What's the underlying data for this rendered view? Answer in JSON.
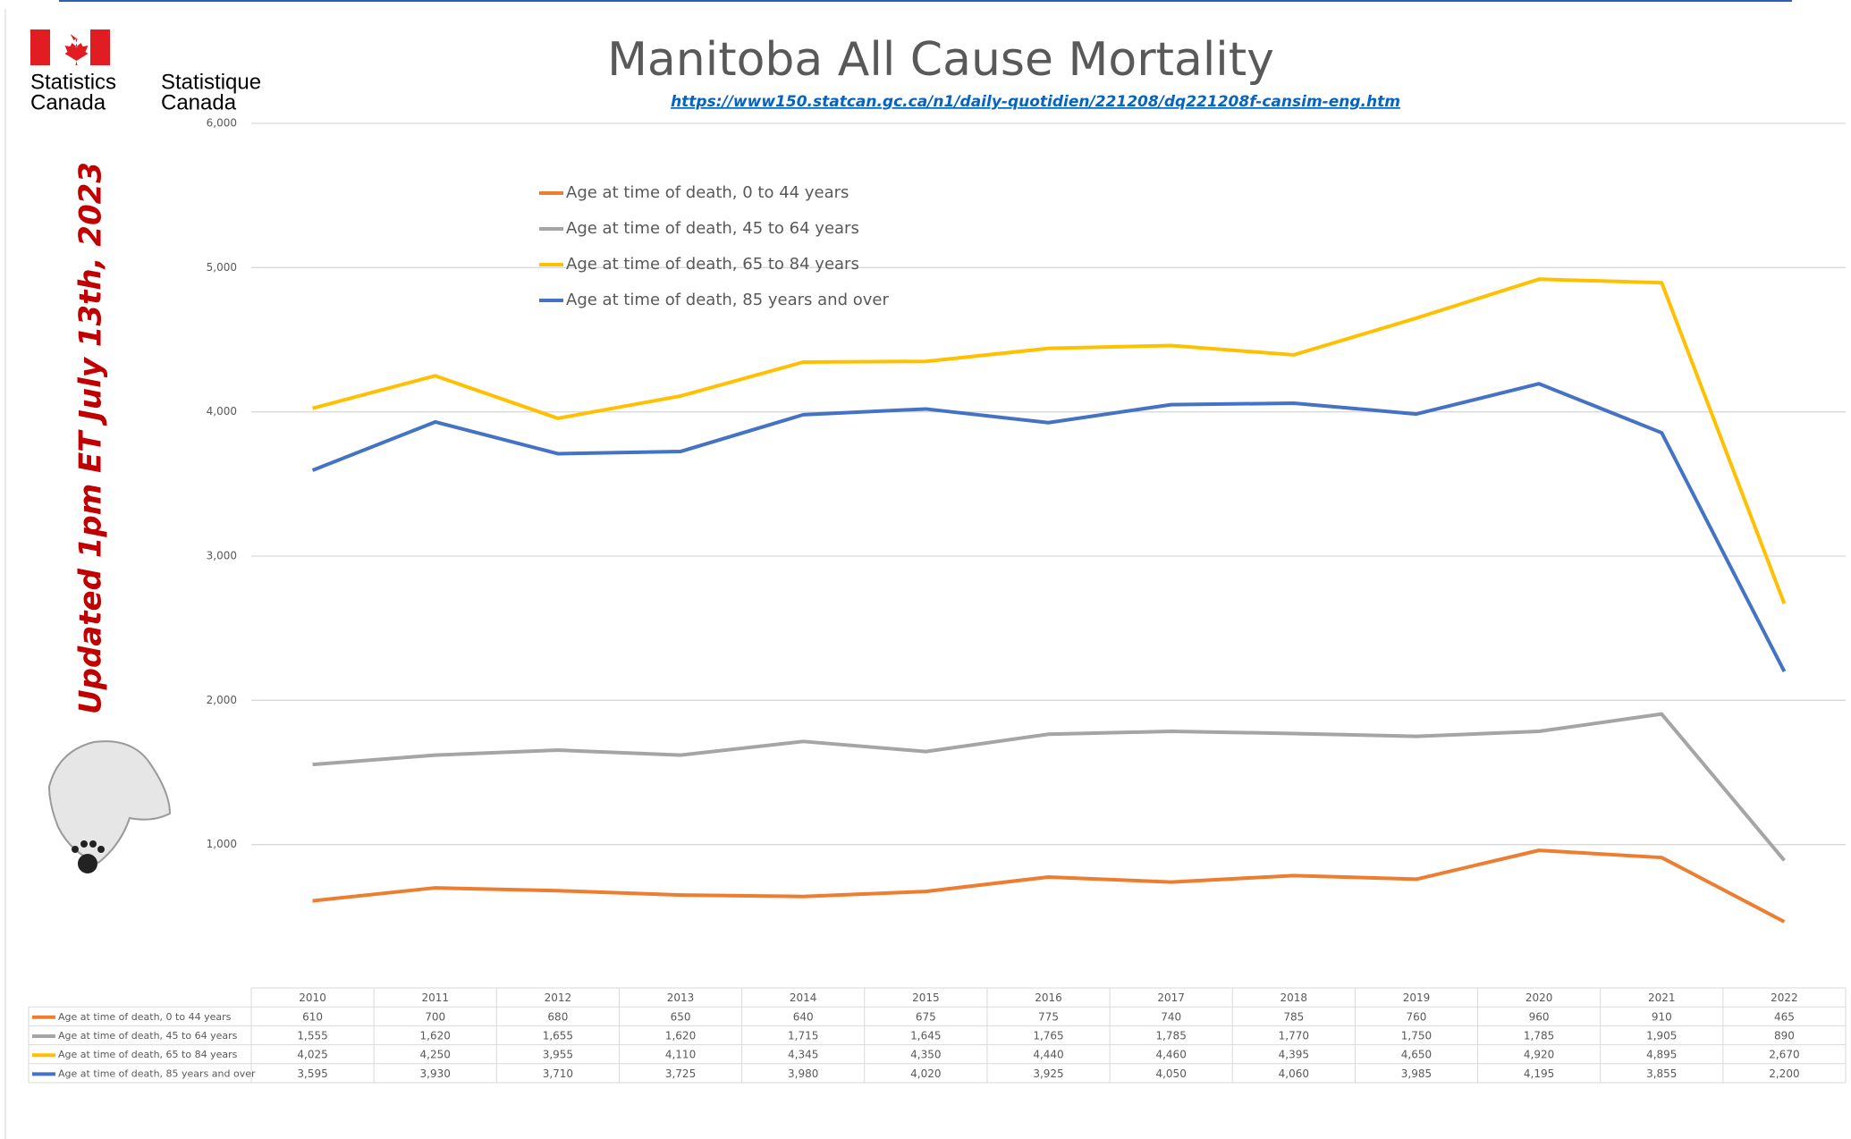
{
  "logo": {
    "english": [
      "Statistics",
      "Canada"
    ],
    "french": [
      "Statistique",
      "Canada"
    ]
  },
  "chart_data": {
    "type": "line",
    "title": "Manitoba All Cause Mortality",
    "subtitle": "https://www150.statcan.gc.ca/n1/daily-quotidien/221208/dq221208f-cansim-eng.htm",
    "annotation": "Updated 1pm ET July 13th, 2023",
    "categories": [
      "2010",
      "2011",
      "2012",
      "2013",
      "2014",
      "2015",
      "2016",
      "2017",
      "2018",
      "2019",
      "2020",
      "2021",
      "2022"
    ],
    "series": [
      {
        "name": "Age at time of death, 0 to 44 years",
        "color": "#ED7D31",
        "values": [
          610,
          700,
          680,
          650,
          640,
          675,
          775,
          740,
          785,
          760,
          960,
          910,
          465
        ],
        "value_labels": [
          "610",
          "700",
          "680",
          "650",
          "640",
          "675",
          "775",
          "740",
          "785",
          "760",
          "960",
          "910",
          "465"
        ]
      },
      {
        "name": "Age at time of death, 45 to 64 years",
        "color": "#A5A5A5",
        "values": [
          1555,
          1620,
          1655,
          1620,
          1715,
          1645,
          1765,
          1785,
          1770,
          1750,
          1785,
          1905,
          890
        ],
        "value_labels": [
          "1,555",
          "1,620",
          "1,655",
          "1,620",
          "1,715",
          "1,645",
          "1,765",
          "1,785",
          "1,770",
          "1,750",
          "1,785",
          "1,905",
          "890"
        ]
      },
      {
        "name": "Age at time of death, 65 to 84 years",
        "color": "#FFC000",
        "values": [
          4025,
          4250,
          3955,
          4110,
          4345,
          4350,
          4440,
          4460,
          4395,
          4650,
          4920,
          4895,
          2670
        ],
        "value_labels": [
          "4,025",
          "4,250",
          "3,955",
          "4,110",
          "4,345",
          "4,350",
          "4,440",
          "4,460",
          "4,395",
          "4,650",
          "4,920",
          "4,895",
          "2,670"
        ]
      },
      {
        "name": "Age at time of death, 85 years and over",
        "color": "#4472C4",
        "values": [
          3595,
          3930,
          3710,
          3725,
          3980,
          4020,
          3925,
          4050,
          4060,
          3985,
          4195,
          3855,
          2200
        ],
        "value_labels": [
          "3,595",
          "3,930",
          "3,710",
          "3,725",
          "3,980",
          "4,020",
          "3,925",
          "4,050",
          "4,060",
          "3,985",
          "4,195",
          "3,855",
          "2,200"
        ]
      }
    ],
    "ylim": [
      0,
      6000
    ],
    "yticks": [
      {
        "value": 1000,
        "label": "1,000"
      },
      {
        "value": 2000,
        "label": "2,000"
      },
      {
        "value": 3000,
        "label": "3,000"
      },
      {
        "value": 4000,
        "label": "4,000"
      },
      {
        "value": 5000,
        "label": "5,000"
      },
      {
        "value": 6000,
        "label": "6,000"
      }
    ],
    "grid": true
  }
}
